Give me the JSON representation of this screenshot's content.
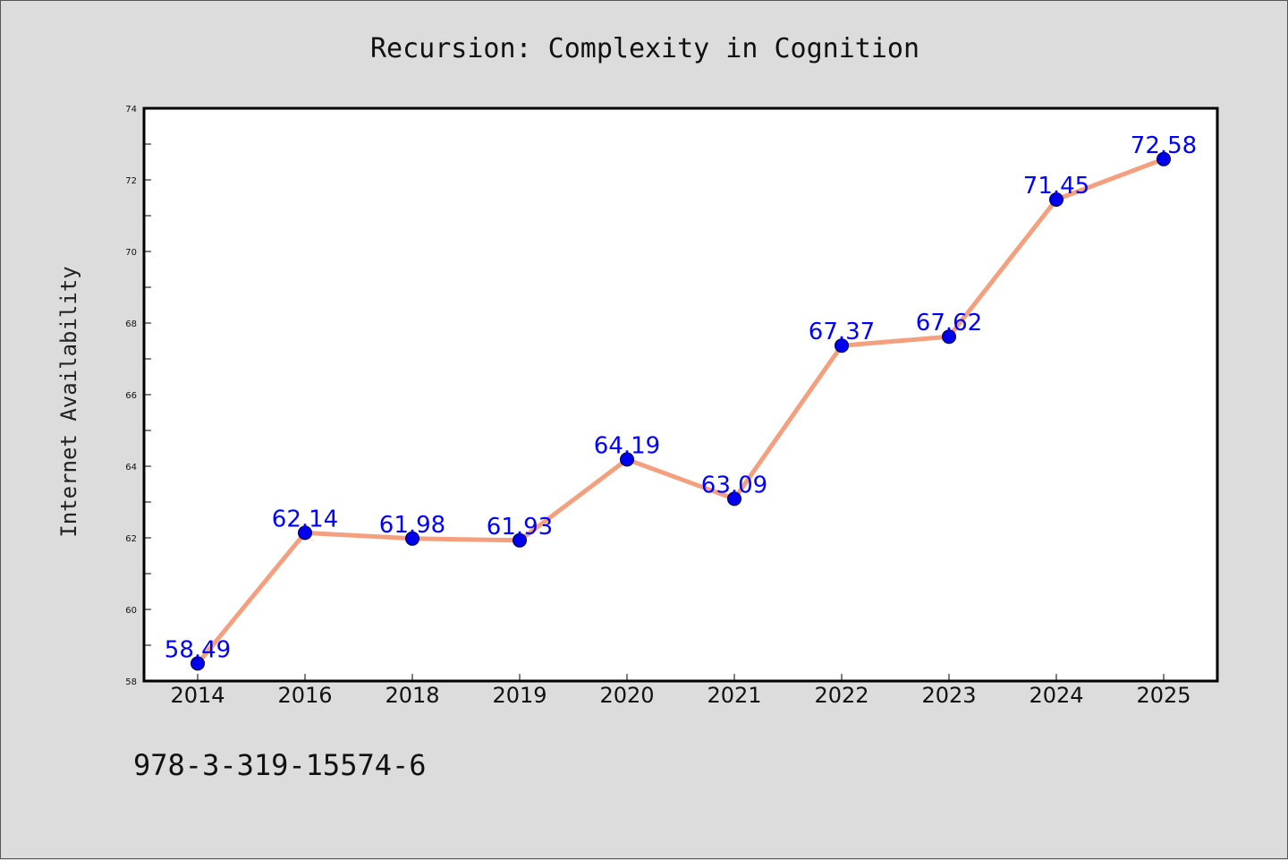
{
  "chart_data": {
    "type": "line",
    "title": "Recursion: Complexity in Cognition",
    "xlabel": "",
    "ylabel": "Internet Availability",
    "categories": [
      "2014",
      "2016",
      "2018",
      "2019",
      "2020",
      "2021",
      "2022",
      "2023",
      "2024",
      "2025"
    ],
    "values": [
      58.49,
      62.14,
      61.98,
      61.93,
      64.19,
      63.09,
      67.37,
      67.62,
      71.45,
      72.58
    ],
    "data_labels": [
      "58.49",
      "62.14",
      "61.98",
      "61.93",
      "64.19",
      "63.09",
      "67.37",
      "67.62",
      "71.45",
      "72.58"
    ],
    "ylim": [
      58,
      74
    ],
    "yticks": [
      58,
      60,
      62,
      64,
      66,
      68,
      70,
      72,
      74
    ],
    "grid": false,
    "legend": "none"
  },
  "annotation": "978-3-319-15574-6",
  "colors": {
    "line": "#f4a07e",
    "marker": "#0000ee",
    "data_label": "#0000ff",
    "background": "#dcdcdc",
    "plot_area": "#ffffff"
  }
}
